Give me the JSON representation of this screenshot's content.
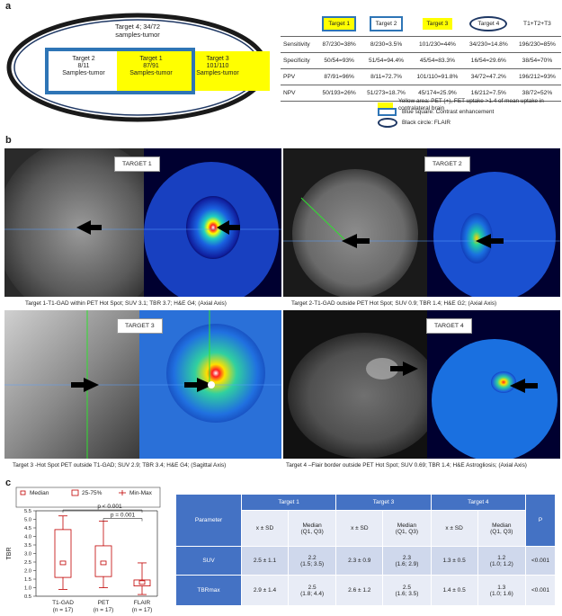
{
  "panel_a": {
    "label": "a",
    "ellipse": {
      "title": "Target 4; 34/72",
      "subtitle": "samples-tumor"
    },
    "target2": {
      "title": "Target 2",
      "count": "8/11",
      "sub": "Samples-tumor"
    },
    "target1": {
      "title": "Target 1",
      "count": "87/91",
      "sub": "Samples-tumor"
    },
    "target3": {
      "title": "Target 3",
      "count": "101/110",
      "sub": "Samples-tumor"
    },
    "table": {
      "headers": [
        "",
        "Target 1",
        "Target 2",
        "Target 3",
        "Target 4",
        "T1+T2+T3"
      ],
      "rows": [
        [
          "Sensitivity",
          "87/230=38%",
          "8/230=3.5%",
          "101/230=44%",
          "34/230=14.8%",
          "196/230=85%"
        ],
        [
          "Specificity",
          "50/54=93%",
          "51/54=94.4%",
          "45/54=83.3%",
          "16/54=29.6%",
          "38/54=70%"
        ],
        [
          "PPV",
          "87/91=96%",
          "8/11=72.7%",
          "101/110=91.8%",
          "34/72=47.2%",
          "196/212=93%"
        ],
        [
          "NPV",
          "50/193=26%",
          "51/273=18.7%",
          "45/174=25.9%",
          "16/212=7.5%",
          "38/72=52%"
        ]
      ]
    },
    "legend": [
      {
        "text": "Yellow area: PET (+), FET uptake >1.4 of mean uptake in contralateral brain",
        "color": "#ffff00"
      },
      {
        "text": "Blue square: Contrast enhancement",
        "color": "#2e75b6"
      },
      {
        "text": "Black circle: FLAIR",
        "color": "#1f3864"
      }
    ]
  },
  "panel_b": {
    "label": "b",
    "images": [
      {
        "title": "TARGET 1",
        "caption": "Target 1-T1-GAD within PET Hot Spot; SUV 3.1; TBR 3.7; H&E G4; (Axial Axis)"
      },
      {
        "title": "TARGET 2",
        "caption": "Target 2-T1-GAD outside PET Hot Spot; SUV 0.9; TBR 1.4; H&E G2; (Axial Axis)"
      },
      {
        "title": "TARGET 3",
        "caption": "Target 3 -Hot Spot PET outside T1-GAD; SUV 2.9; TBR 3.4; H&E G4; (Sagittal Axis)"
      },
      {
        "title": "TARGET 4",
        "caption": "Target 4 –Flair border outside PET Hot Spot; SUV 0.69; TBR 1.4; H&E Astrogliosis; (Axial Axis)"
      }
    ]
  },
  "panel_c": {
    "label": "c",
    "legend": [
      "Median",
      "25-75%",
      "Min-Max"
    ],
    "pvalues": [
      "p < 0.001",
      "p = 0.001"
    ],
    "table": {
      "header_param": "Parameter",
      "header_targets": [
        "Target 1",
        "Target 3",
        "Target 4"
      ],
      "header_p": "P",
      "sub": [
        "x ± SD",
        "Median\n(Q1, Q3)"
      ],
      "rows": [
        {
          "name": "SUV",
          "cells": [
            "2.5 ± 1.1",
            "2.2\n(1.5; 3.5)",
            "2.3 ± 0.9",
            "2.3\n(1.6; 2.9)",
            "1.3 ± 0.5",
            "1.2\n(1.0; 1.2)"
          ],
          "p": "<0.001"
        },
        {
          "name": "TBRmax",
          "cells": [
            "2.9 ± 1.4",
            "2.5\n(1.8; 4.4)",
            "2.6 ± 1.2",
            "2.5\n(1.6; 3.5)",
            "1.4 ± 0.5",
            "1.3\n(1.0; 1.6)"
          ],
          "p": "<0.001"
        }
      ]
    }
  },
  "chart_data": {
    "type": "box",
    "ylabel": "TBR",
    "ylim": [
      0.5,
      5.5
    ],
    "yticks": [
      "0.5",
      "1.0",
      "1.5",
      "2.0",
      "2.5",
      "3.0",
      "3.5",
      "4.0",
      "4.5",
      "5.0",
      "5.5"
    ],
    "categories": [
      "T1-GAD\n(n = 17)",
      "PET\n(n = 17)",
      "FLAIR\n(n = 17)"
    ],
    "boxes": [
      {
        "min": 0.9,
        "q1": 1.6,
        "median": 2.45,
        "q3": 4.4,
        "max": 5.2
      },
      {
        "min": 1.0,
        "q1": 1.65,
        "median": 2.45,
        "q3": 3.45,
        "max": 4.9
      },
      {
        "min": 0.6,
        "q1": 1.1,
        "median": 1.3,
        "q3": 1.45,
        "max": 2.45
      }
    ],
    "color": "#c00000"
  }
}
